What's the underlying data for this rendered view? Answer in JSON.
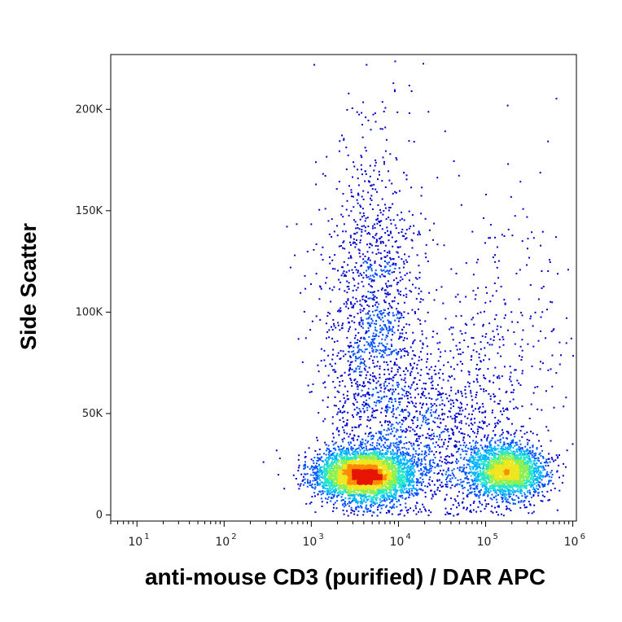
{
  "chart_data": {
    "type": "scatter",
    "plot_style": "density dot plot (flow cytometry)",
    "title": "",
    "xlabel": "anti-mouse CD3 (purified) / DAR APC",
    "ylabel": "Side Scatter",
    "x_scale": "log",
    "xlim": [
      5,
      1100000
    ],
    "ylim": [
      -3000,
      227000
    ],
    "x_ticks": [
      {
        "base": "10",
        "exp": "1",
        "value": 10
      },
      {
        "base": "10",
        "exp": "2",
        "value": 100
      },
      {
        "base": "10",
        "exp": "3",
        "value": 1000
      },
      {
        "base": "10",
        "exp": "4",
        "value": 10000
      },
      {
        "base": "10",
        "exp": "5",
        "value": 100000
      },
      {
        "base": "10",
        "exp": "6",
        "value": 1000000
      }
    ],
    "y_ticks": [
      {
        "label": "0",
        "value": 0
      },
      {
        "label": "50K",
        "value": 50000
      },
      {
        "label": "100K",
        "value": 100000
      },
      {
        "label": "150K",
        "value": 150000
      },
      {
        "label": "200K",
        "value": 200000
      }
    ],
    "populations": [
      {
        "name": "",
        "x_center": 4000,
        "y_center": 20000,
        "x_spread_decades": 0.28,
        "y_spread": 6000,
        "events": 4200
      },
      {
        "name": "",
        "x_center": 170000,
        "y_center": 22000,
        "x_spread_decades": 0.22,
        "y_spread": 6500,
        "events": 2400
      },
      {
        "name": "",
        "x_center": 5000,
        "y_center": 90000,
        "x_spread_decades": 0.3,
        "y_spread": 45000,
        "events": 1600
      },
      {
        "name": "",
        "x_center": 30000,
        "y_center": 40000,
        "x_spread_decades": 0.45,
        "y_spread": 22000,
        "events": 900
      },
      {
        "name": "",
        "x_center": 150000,
        "y_center": 80000,
        "x_spread_decades": 0.45,
        "y_spread": 45000,
        "events": 350
      }
    ],
    "density_colors": [
      "#0000cc",
      "#0050ff",
      "#00b4ff",
      "#28e6c8",
      "#8cf050",
      "#f0e61e",
      "#ff8c00",
      "#e61400"
    ],
    "grid": false,
    "legend": "none"
  }
}
